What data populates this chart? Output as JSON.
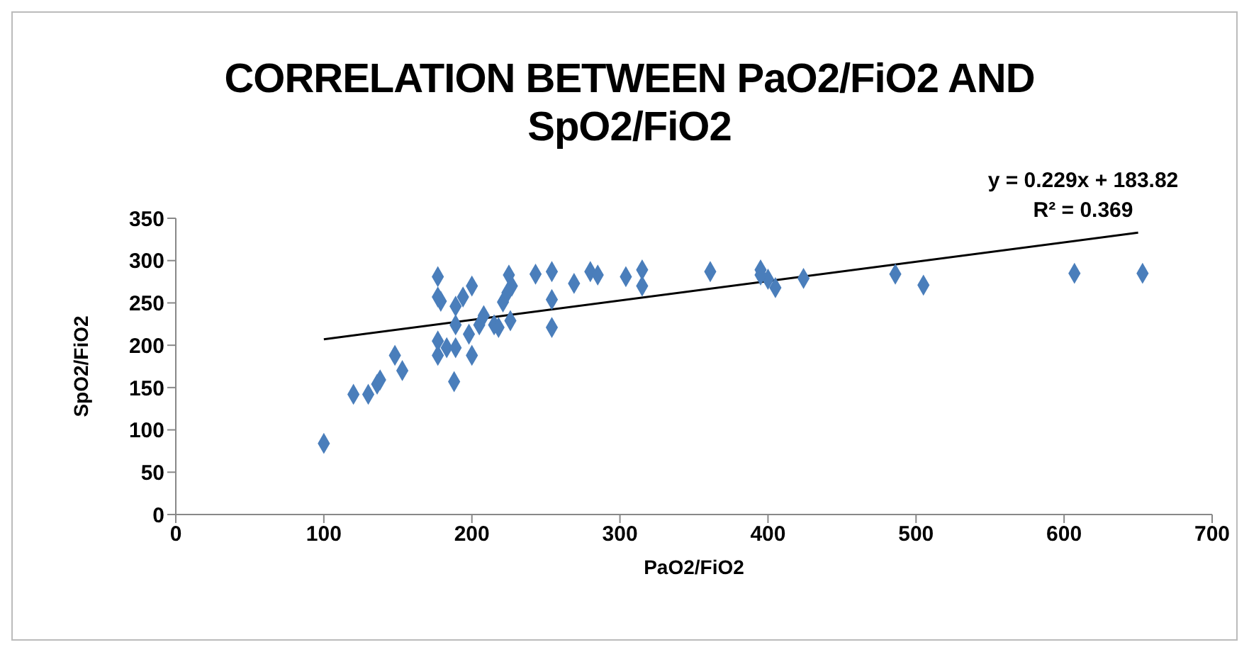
{
  "chart_data": {
    "type": "scatter",
    "title": "CORRELATION BETWEEN PaO2/FiO2 AND SpO2/FiO2",
    "xlabel": "PaO2/FiO2",
    "ylabel": "SpO2/FiO2",
    "xlim": [
      0,
      700
    ],
    "xticks": [
      0,
      100,
      200,
      300,
      400,
      500,
      600,
      700
    ],
    "ylim": [
      0,
      350
    ],
    "yticks": [
      0,
      50,
      100,
      150,
      200,
      250,
      300,
      350
    ],
    "grid": false,
    "legend": false,
    "marker": "diamond",
    "annotations": [
      "y = 0.229x + 183.82",
      "R² = 0.369"
    ],
    "series": [
      {
        "color": "#4a7ebb",
        "x": [
          100,
          120,
          130,
          136,
          138,
          148,
          153,
          177,
          177,
          179,
          177,
          177,
          183,
          189,
          188,
          189,
          194,
          200,
          200,
          198,
          205,
          189,
          215,
          208,
          225,
          227,
          243,
          254,
          254,
          254,
          269,
          280,
          285,
          304,
          315,
          315,
          361,
          395,
          405,
          424,
          486,
          505,
          607,
          653,
          218,
          226,
          221,
          224,
          400,
          395
        ],
        "values": [
          84,
          142,
          142,
          154,
          159,
          188,
          170,
          281,
          257,
          252,
          205,
          188,
          197,
          197,
          157,
          246,
          257,
          270,
          188,
          213,
          224,
          224,
          224,
          235,
          283,
          270,
          284,
          287,
          254,
          221,
          273,
          287,
          283,
          281,
          289,
          270,
          287,
          289,
          268,
          279,
          284,
          271,
          285,
          285,
          221,
          229,
          251,
          262,
          278,
          283
        ]
      },
      {
        "type": "line",
        "color": "#000000",
        "marker": "none",
        "x": [
          100,
          650
        ],
        "values": [
          207,
          333
        ]
      }
    ]
  }
}
